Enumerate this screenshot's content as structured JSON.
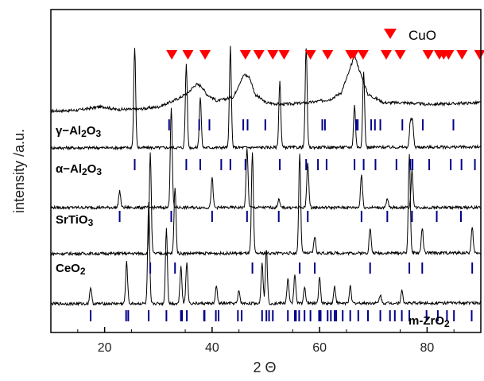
{
  "chart_data": {
    "type": "line",
    "xlabel": "2 Θ",
    "ylabel": "intensity /a.u.",
    "xlim": [
      10,
      90
    ],
    "x_ticks": [
      20,
      40,
      60,
      80
    ],
    "y_tick_labels": false,
    "legend": {
      "label": "CuO",
      "marker": "down-triangle",
      "color": "#ff0000",
      "position": "top-right"
    },
    "cuo_peaks": [
      32.5,
      35.5,
      38.7,
      46.2,
      48.7,
      51.3,
      53.4,
      58.3,
      61.5,
      65.8,
      66.3,
      68.1,
      72.4,
      75.0,
      80.2,
      82.3,
      83.1,
      84.0,
      86.5,
      89.8
    ],
    "series": [
      {
        "name": "CuO/γ-Al2O3 pattern",
        "color": "#000000",
        "points": [
          [
            10,
            0.08
          ],
          [
            15,
            0.09
          ],
          [
            19,
            0.13
          ],
          [
            20,
            0.13
          ],
          [
            22,
            0.1
          ],
          [
            26,
            0.1
          ],
          [
            30,
            0.13
          ],
          [
            32,
            0.18
          ],
          [
            34,
            0.24
          ],
          [
            35.5,
            0.3
          ],
          [
            37,
            0.4
          ],
          [
            38,
            0.38
          ],
          [
            39,
            0.28
          ],
          [
            41,
            0.2
          ],
          [
            44,
            0.25
          ],
          [
            45,
            0.4
          ],
          [
            46,
            0.52
          ],
          [
            47,
            0.48
          ],
          [
            48,
            0.28
          ],
          [
            50,
            0.18
          ],
          [
            53,
            0.16
          ],
          [
            58,
            0.18
          ],
          [
            62,
            0.22
          ],
          [
            64,
            0.3
          ],
          [
            65.5,
            0.55
          ],
          [
            66.5,
            0.75
          ],
          [
            67.5,
            0.55
          ],
          [
            69,
            0.28
          ],
          [
            72,
            0.18
          ],
          [
            76,
            0.18
          ],
          [
            80,
            0.16
          ],
          [
            85,
            0.17
          ],
          [
            90,
            0.18
          ]
        ],
        "peaks": []
      },
      {
        "name": "CuO/α-Al2O3 pattern",
        "color": "#000000",
        "points": [
          [
            10,
            0.02
          ],
          [
            90,
            0.03
          ]
        ],
        "peaks": [
          [
            25.6,
            1.2
          ],
          [
            35.2,
            1.0
          ],
          [
            37.8,
            0.6
          ],
          [
            43.4,
            1.2
          ],
          [
            52.6,
            0.8
          ],
          [
            57.5,
            1.2
          ],
          [
            66.5,
            0.5
          ],
          [
            68.2,
            0.9
          ],
          [
            76.9,
            0.3
          ],
          [
            77.3,
            0.3
          ]
        ]
      },
      {
        "name": "CuO/SrTiO3 pattern",
        "color": "#000000",
        "points": [
          [
            10,
            0.02
          ],
          [
            90,
            0.02
          ]
        ],
        "peaks": [
          [
            22.8,
            0.2
          ],
          [
            32.4,
            1.2
          ],
          [
            40.0,
            0.35
          ],
          [
            46.5,
            0.7
          ],
          [
            52.4,
            0.1
          ],
          [
            57.8,
            0.55
          ],
          [
            67.8,
            0.4
          ],
          [
            72.6,
            0.1
          ],
          [
            77.2,
            0.45
          ]
        ]
      },
      {
        "name": "CuO/CeO2 pattern",
        "color": "#000000",
        "points": [
          [
            10,
            0.02
          ],
          [
            90,
            0.03
          ]
        ],
        "peaks": [
          [
            28.5,
            1.2
          ],
          [
            33.1,
            0.8
          ],
          [
            47.5,
            1.2
          ],
          [
            56.3,
            1.2
          ],
          [
            59.1,
            0.2
          ],
          [
            69.4,
            0.3
          ],
          [
            76.7,
            1.2
          ],
          [
            79.1,
            0.3
          ],
          [
            88.4,
            0.3
          ]
        ]
      },
      {
        "name": "CuO/m-ZrO2 pattern",
        "color": "#000000",
        "points": [
          [
            10,
            0.02
          ],
          [
            90,
            0.03
          ]
        ],
        "peaks": [
          [
            17.4,
            0.2
          ],
          [
            24.1,
            0.5
          ],
          [
            28.2,
            1.2
          ],
          [
            31.5,
            0.9
          ],
          [
            34.2,
            0.45
          ],
          [
            35.3,
            0.5
          ],
          [
            40.8,
            0.2
          ],
          [
            45,
            0.15
          ],
          [
            49.3,
            0.5
          ],
          [
            50.1,
            0.65
          ],
          [
            54.1,
            0.3
          ],
          [
            55.4,
            0.35
          ],
          [
            57.2,
            0.2
          ],
          [
            60,
            0.3
          ],
          [
            62.8,
            0.2
          ],
          [
            65.7,
            0.2
          ],
          [
            71.3,
            0.1
          ],
          [
            75.3,
            0.15
          ]
        ]
      }
    ],
    "reference_labels": [
      "γ-Al2O3",
      "α-Al2O3",
      "SrTiO3",
      "CeO2",
      "m-ZrO2"
    ],
    "reference_ticks": {
      "γ-Al2O3": [
        32.0,
        37.6,
        39.5,
        45.8,
        46.6,
        49.9,
        60.5,
        61.0,
        66.8,
        67.1,
        69.6,
        70.3,
        71.3,
        75.4,
        79.2,
        84.9
      ],
      "α-Al2O3": [
        25.6,
        35.2,
        37.8,
        41.7,
        43.4,
        46.2,
        52.6,
        57.5,
        59.7,
        61.3,
        66.5,
        68.2,
        70.4,
        74.3,
        76.9,
        77.3,
        80.4,
        84.4,
        86.4,
        88.9
      ],
      "SrTiO3": [
        22.8,
        32.4,
        40.0,
        46.5,
        52.4,
        57.8,
        67.8,
        72.6,
        77.2,
        81.8,
        86.3
      ],
      "CeO2": [
        28.5,
        33.1,
        47.5,
        56.3,
        59.1,
        69.4,
        76.7,
        79.1,
        88.4
      ],
      "m-ZrO2": [
        17.4,
        24.0,
        24.4,
        28.2,
        31.5,
        34.2,
        34.4,
        35.3,
        38.5,
        38.6,
        40.7,
        41.2,
        44.8,
        45.5,
        49.3,
        50.1,
        50.6,
        51.3,
        54.1,
        55.4,
        55.6,
        56.2,
        57.2,
        58.3,
        59.9,
        60.2,
        61.5,
        62.1,
        62.8,
        63.1,
        64.3,
        65.7,
        67.2,
        69.0,
        71.3,
        73.1,
        74.0,
        75.3,
        76.7,
        79.9,
        82.0,
        83.7,
        85.0,
        88.3
      ]
    }
  }
}
